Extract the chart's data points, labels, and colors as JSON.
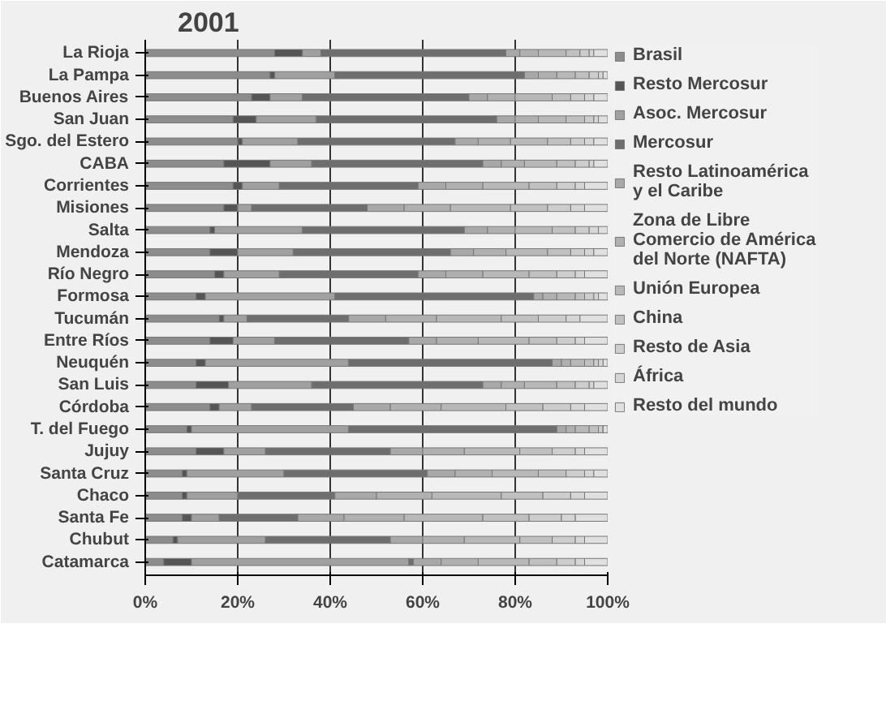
{
  "chart_data": {
    "type": "bar",
    "title": "2001",
    "orientation": "horizontal",
    "stacked": true,
    "categories": [
      "La Rioja",
      "La Pampa",
      "Buenos Aires",
      "San Juan",
      "Sgo. del Estero",
      "CABA",
      "Corrientes",
      "Misiones",
      "Salta",
      "Mendoza",
      "Río Negro",
      "Formosa",
      "Tucumán",
      "Entre Ríos",
      "Neuquén",
      "San Luis",
      "Córdoba",
      "T. del Fuego",
      "Jujuy",
      "Santa Cruz",
      "Chaco",
      "Santa Fe",
      "Chubut",
      "Catamarca"
    ],
    "series": [
      {
        "name": "Brasil",
        "color": "#8c8c8c",
        "values": [
          28,
          27,
          23,
          19,
          20,
          17,
          19,
          17,
          14,
          14,
          15,
          11,
          16,
          14,
          11,
          11,
          14,
          9,
          11,
          8,
          8,
          8,
          6,
          4
        ]
      },
      {
        "name": "Resto Mercosur",
        "color": "#555555",
        "values": [
          6,
          1,
          4,
          5,
          1,
          10,
          2,
          3,
          1,
          6,
          2,
          2,
          1,
          5,
          2,
          7,
          2,
          1,
          6,
          1,
          1,
          2,
          1,
          6
        ]
      },
      {
        "name": "Asoc. Mercosur",
        "color": "#a0a0a0",
        "values": [
          4,
          13,
          7,
          13,
          12,
          9,
          8,
          3,
          19,
          12,
          12,
          28,
          5,
          9,
          31,
          18,
          7,
          34,
          9,
          21,
          11,
          6,
          19,
          47
        ]
      },
      {
        "name": "Mercosur",
        "color": "#6e6e6e",
        "values": [
          40,
          41,
          36,
          39,
          34,
          37,
          30,
          25,
          35,
          34,
          30,
          43,
          22,
          29,
          44,
          37,
          22,
          45,
          27,
          31,
          21,
          17,
          27,
          1
        ]
      },
      {
        "name": "Resto Latinoamérica y el Caribe",
        "color": "#a8a8a8",
        "values": [
          3,
          3,
          4,
          4,
          5,
          4,
          6,
          8,
          5,
          5,
          6,
          2,
          8,
          6,
          2,
          4,
          8,
          2,
          7,
          6,
          9,
          10,
          7,
          6
        ]
      },
      {
        "name": "Zona de Libre Comercio de América del Norte (NAFTA)",
        "color": "#b0b0b0",
        "values": [
          4,
          4,
          6,
          5,
          7,
          5,
          8,
          10,
          6,
          7,
          8,
          3,
          11,
          9,
          2,
          5,
          11,
          2,
          9,
          8,
          12,
          13,
          9,
          8
        ]
      },
      {
        "name": "Unión Europea",
        "color": "#b8b8b8",
        "values": [
          6,
          4,
          8,
          6,
          8,
          7,
          10,
          13,
          8,
          9,
          10,
          4,
          14,
          11,
          3,
          7,
          14,
          3,
          12,
          10,
          15,
          17,
          12,
          11
        ]
      },
      {
        "name": "China",
        "color": "#c0c0c0",
        "values": [
          3,
          3,
          4,
          4,
          5,
          4,
          6,
          8,
          5,
          5,
          6,
          2,
          8,
          6,
          2,
          4,
          8,
          2,
          7,
          6,
          9,
          10,
          7,
          6
        ]
      },
      {
        "name": "Resto de Asia",
        "color": "#cdcdcd",
        "values": [
          2,
          2,
          3,
          2,
          3,
          3,
          4,
          5,
          3,
          3,
          4,
          2,
          6,
          4,
          1,
          3,
          6,
          1,
          5,
          4,
          6,
          7,
          5,
          4
        ]
      },
      {
        "name": "África",
        "color": "#d6d6d6",
        "values": [
          1,
          1,
          2,
          1,
          2,
          1,
          2,
          3,
          2,
          2,
          2,
          1,
          3,
          2,
          1,
          1,
          3,
          0,
          2,
          2,
          3,
          3,
          2,
          2
        ]
      },
      {
        "name": "Resto del mundo",
        "color": "#e0e0e0",
        "values": [
          3,
          1,
          3,
          2,
          3,
          3,
          5,
          5,
          2,
          3,
          5,
          2,
          6,
          5,
          1,
          3,
          5,
          1,
          5,
          3,
          5,
          7,
          5,
          5
        ]
      }
    ],
    "xlim": [
      0,
      100
    ],
    "xticks": [
      {
        "value": 0,
        "label": "0%"
      },
      {
        "value": 20,
        "label": "20%"
      },
      {
        "value": 40,
        "label": "40%"
      },
      {
        "value": 60,
        "label": "60%"
      },
      {
        "value": 80,
        "label": "80%"
      },
      {
        "value": 100,
        "label": "100%"
      }
    ],
    "grid": "x",
    "legend": "right"
  }
}
